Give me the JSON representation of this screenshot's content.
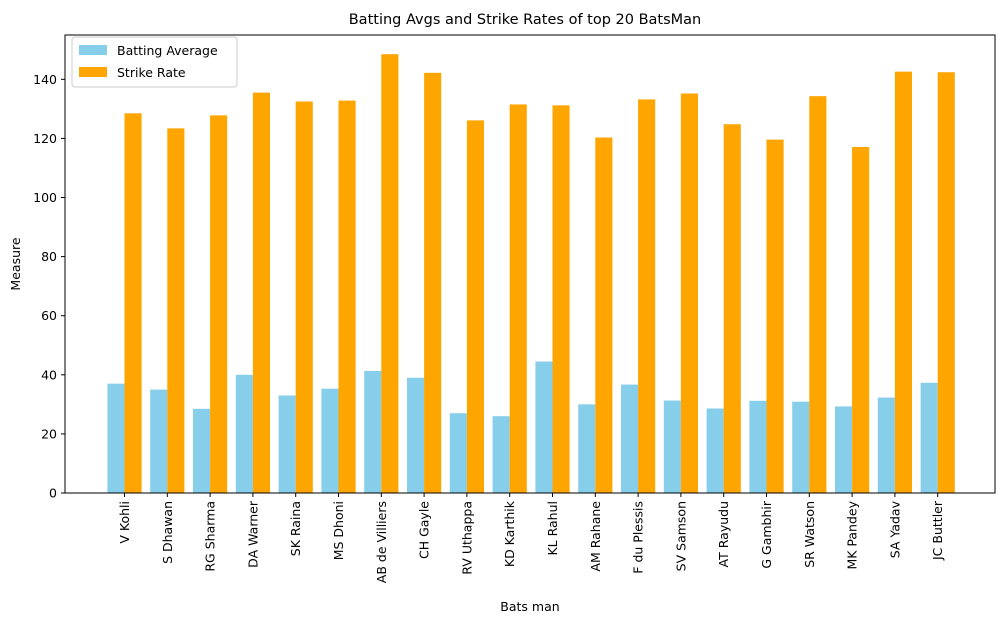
{
  "chart_data": {
    "type": "bar",
    "title": "Batting Avgs and Strike Rates of top 20 BatsMan",
    "xlabel": "Bats man",
    "ylabel": "Measure",
    "ylim": [
      0,
      155
    ],
    "yticks": [
      0,
      20,
      40,
      60,
      80,
      100,
      120,
      140
    ],
    "grid": false,
    "legend_position": "top-left",
    "categories": [
      "V Kohli",
      "S Dhawan",
      "RG Sharma",
      "DA Warner",
      "SK Raina",
      "MS Dhoni",
      "AB de Villiers",
      "CH Gayle",
      "RV Uthappa",
      "KD Karthik",
      "KL Rahul",
      "AM Rahane",
      "F du Plessis",
      "SV Samson",
      "AT Rayudu",
      "G Gambhir",
      "SR Watson",
      "MK Pandey",
      "SA Yadav",
      "JC Buttler"
    ],
    "series": [
      {
        "name": "Batting Average",
        "color": "#87ceeb",
        "values": [
          37.0,
          35.0,
          28.5,
          40.0,
          33.0,
          35.3,
          41.3,
          39.0,
          27.0,
          26.0,
          44.5,
          30.0,
          36.7,
          31.3,
          28.6,
          31.2,
          30.9,
          29.3,
          32.3,
          37.3
        ]
      },
      {
        "name": "Strike Rate",
        "color": "#ffa500",
        "values": [
          128.5,
          123.4,
          127.8,
          135.5,
          132.5,
          132.8,
          148.5,
          142.2,
          126.1,
          131.5,
          131.2,
          120.3,
          133.2,
          135.2,
          124.8,
          119.6,
          134.3,
          117.1,
          142.6,
          142.4
        ]
      }
    ]
  }
}
